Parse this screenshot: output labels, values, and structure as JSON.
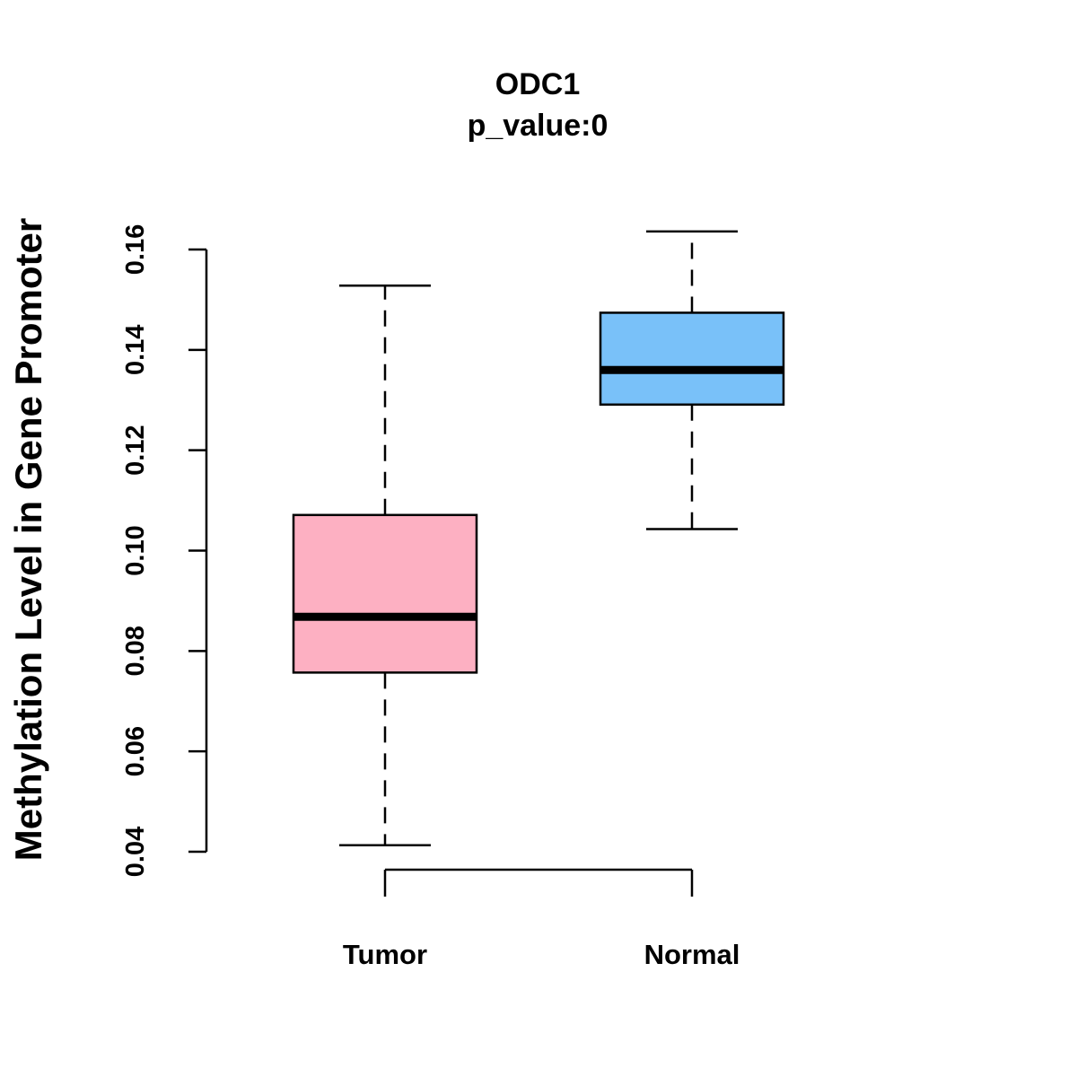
{
  "chart_data": {
    "type": "boxplot",
    "title": "ODC1",
    "subtitle": "p_value:0",
    "xlabel": "",
    "ylabel": "Methylation Level in Gene Promoter",
    "ylim": [
      0.04,
      0.16
    ],
    "yticks": [
      0.04,
      0.06,
      0.08,
      0.1,
      0.12,
      0.14,
      0.16
    ],
    "ytick_labels": [
      "0.04",
      "0.06",
      "0.08",
      "0.10",
      "0.12",
      "0.14",
      "0.16"
    ],
    "categories": [
      "Tumor",
      "Normal"
    ],
    "series": [
      {
        "name": "Tumor",
        "min": 0.0413,
        "q1": 0.0757,
        "median": 0.0868,
        "q3": 0.1071,
        "max": 0.1528,
        "color": "#FDB0C2"
      },
      {
        "name": "Normal",
        "min": 0.1043,
        "q1": 0.1291,
        "median": 0.136,
        "q3": 0.1474,
        "max": 0.1636,
        "color": "#79C1F9"
      }
    ],
    "grid": false,
    "legend": "none"
  }
}
